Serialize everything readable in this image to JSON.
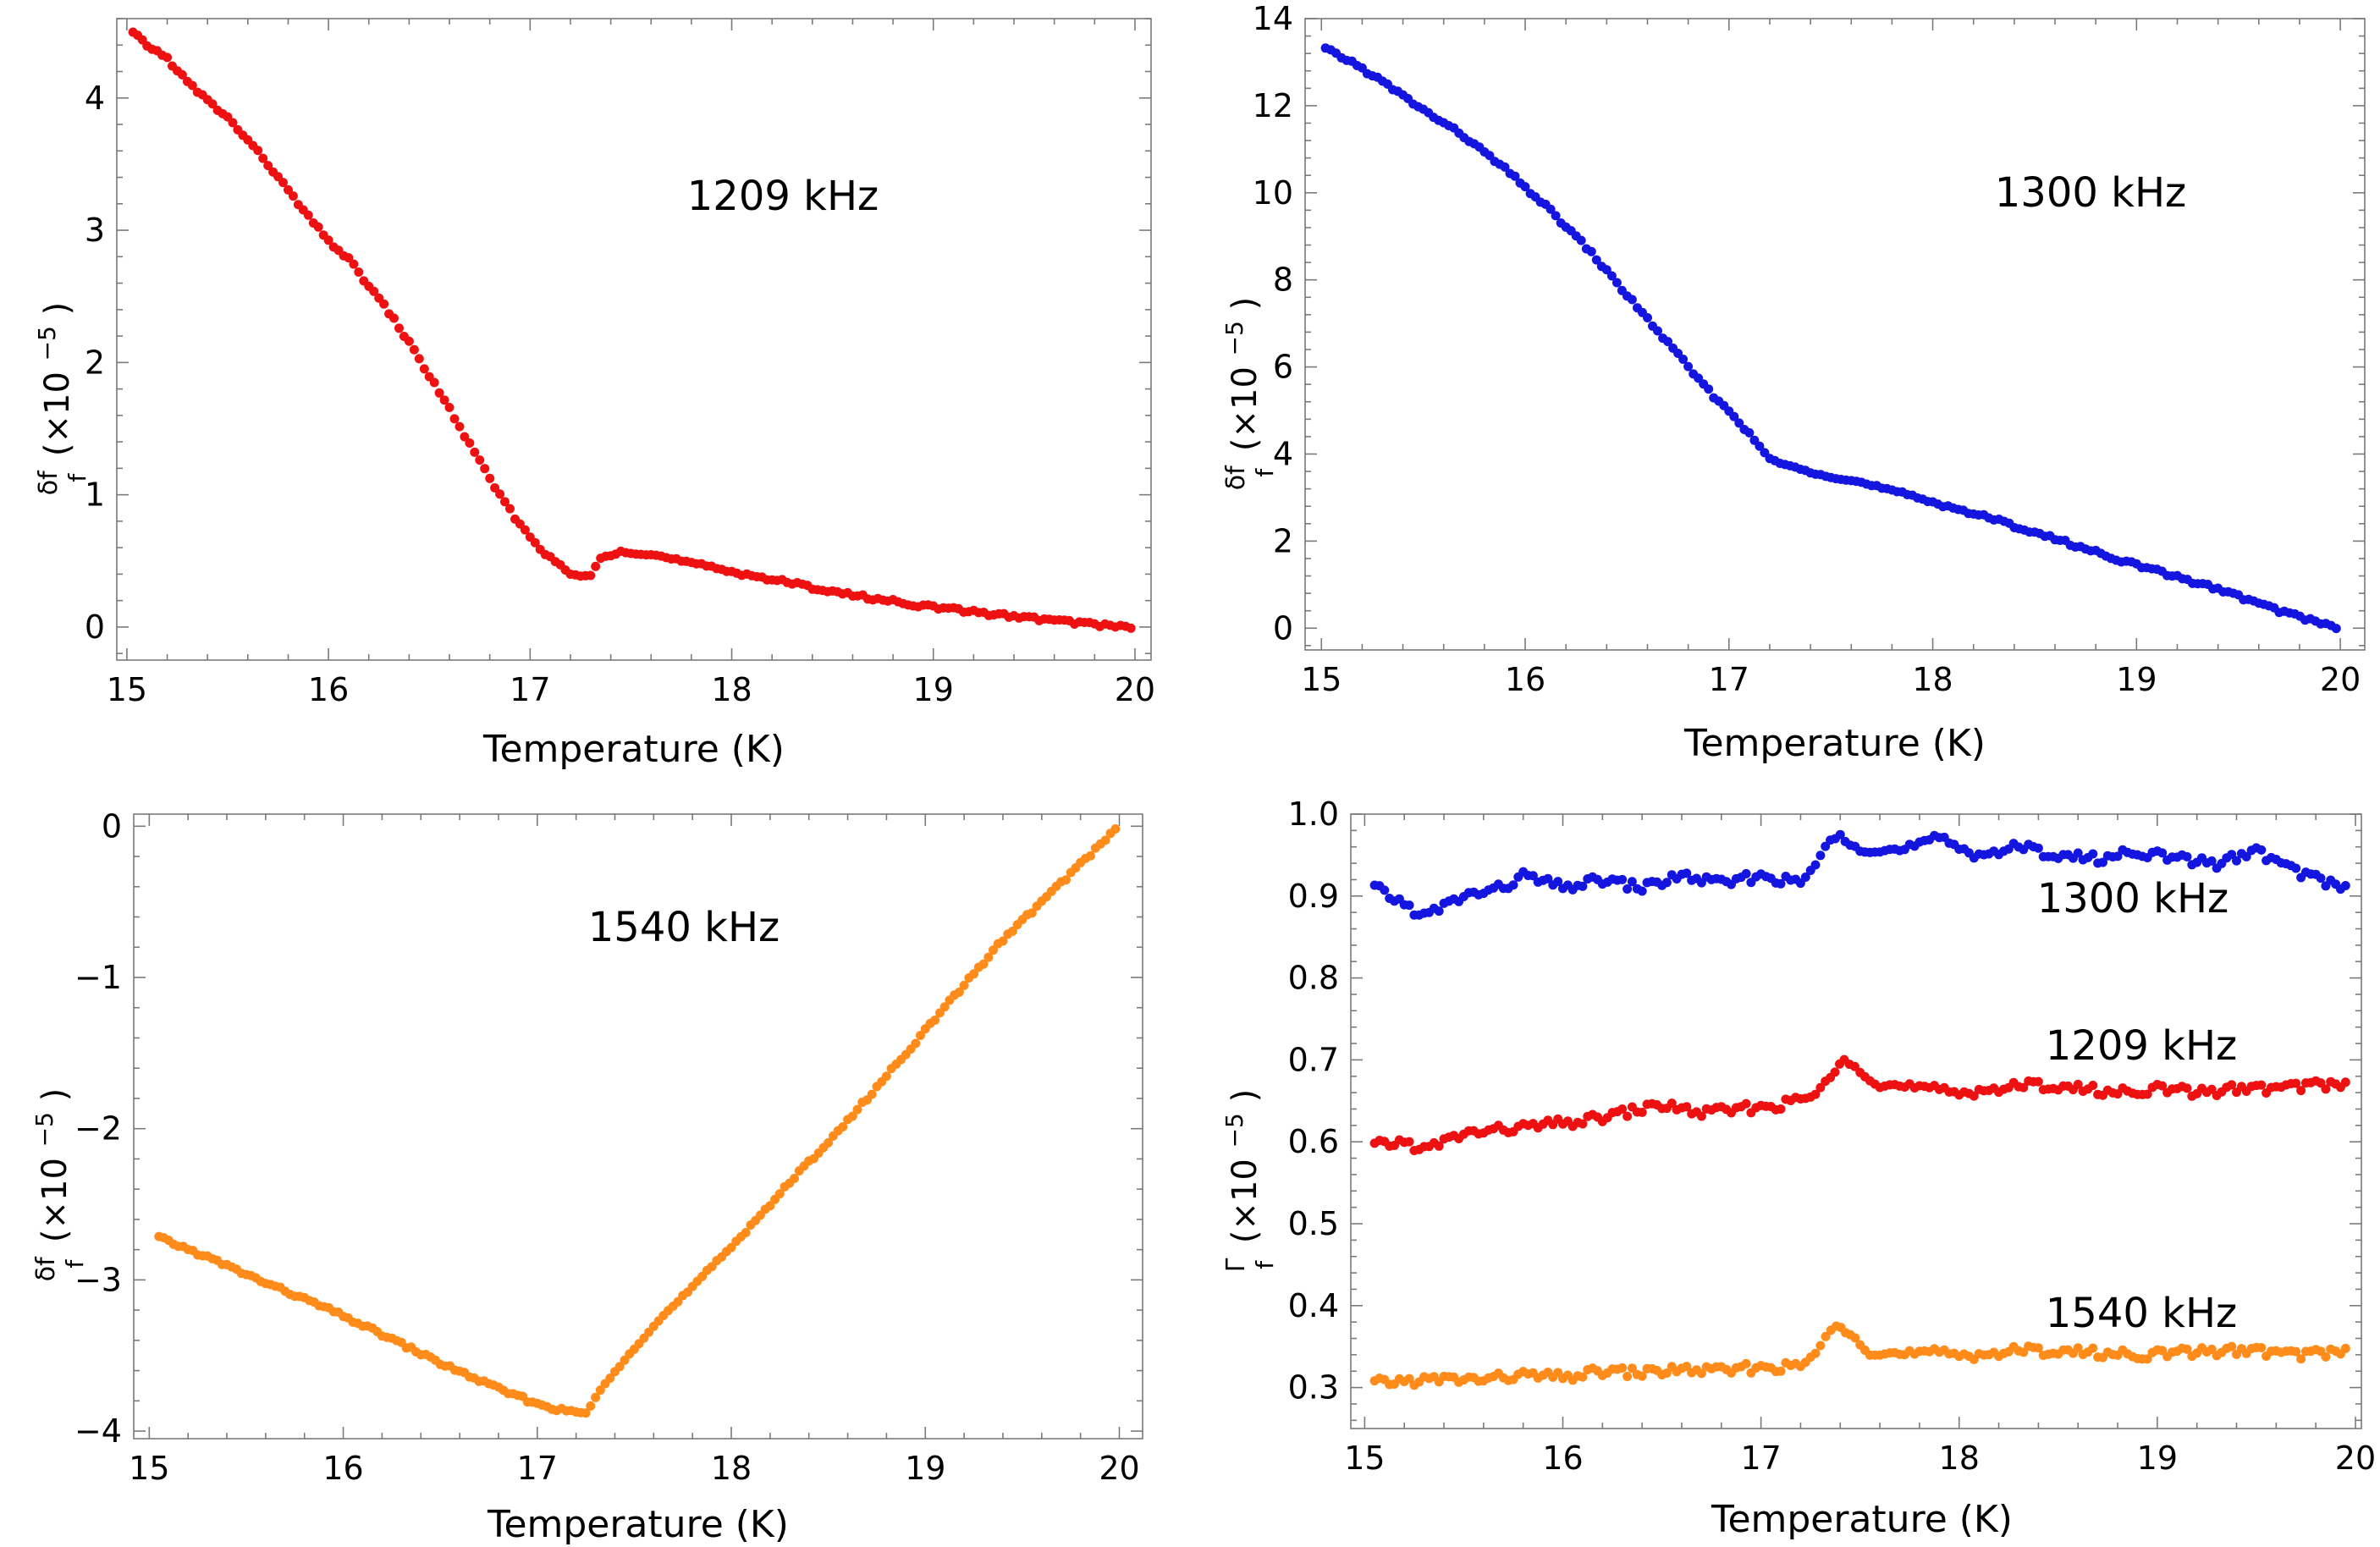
{
  "chart_data": [
    {
      "type": "scatter",
      "id": "p1",
      "xlabel": "Temperature (K)",
      "ylabel": {
        "frac_top": "δf",
        "frac_bottom": "f",
        "suffix": "(×10",
        "exp": "−5",
        "close": ")"
      },
      "xlim": [
        14.95,
        20.08
      ],
      "ylim": [
        -0.25,
        4.6
      ],
      "xticks": [
        15,
        16,
        17,
        18,
        19,
        20
      ],
      "yticks": [
        0,
        1,
        2,
        3,
        4
      ],
      "annotation": "1209 kHz",
      "series": [
        {
          "name": "1209 kHz",
          "color": "#ee1111",
          "x": [
            15.03,
            15.1,
            15.2,
            15.3,
            15.4,
            15.5,
            15.6,
            15.7,
            15.8,
            15.9,
            16.0,
            16.1,
            16.2,
            16.3,
            16.4,
            16.5,
            16.6,
            16.7,
            16.8,
            16.9,
            17.0,
            17.1,
            17.2,
            17.3,
            17.35,
            17.45,
            17.6,
            17.8,
            18.0,
            18.3,
            18.6,
            19.0,
            19.4,
            19.8,
            19.98
          ],
          "y": [
            4.49,
            4.4,
            4.3,
            4.12,
            3.98,
            3.85,
            3.68,
            3.5,
            3.3,
            3.1,
            2.92,
            2.78,
            2.58,
            2.38,
            2.15,
            1.9,
            1.65,
            1.38,
            1.12,
            0.88,
            0.68,
            0.52,
            0.4,
            0.38,
            0.52,
            0.58,
            0.55,
            0.48,
            0.42,
            0.33,
            0.24,
            0.15,
            0.08,
            0.02,
            0.0
          ]
        }
      ]
    },
    {
      "type": "scatter",
      "id": "p2",
      "xlabel": "Temperature (K)",
      "ylabel": {
        "frac_top": "δf",
        "frac_bottom": "f",
        "suffix": "(×10",
        "exp": "−5",
        "close": ")"
      },
      "xlim": [
        14.92,
        20.12
      ],
      "ylim": [
        -0.5,
        14.0
      ],
      "xticks": [
        15,
        16,
        17,
        18,
        19,
        20
      ],
      "yticks": [
        0,
        2,
        4,
        6,
        8,
        10,
        12,
        14
      ],
      "annotation": "1300 kHz",
      "series": [
        {
          "name": "1300 kHz",
          "color": "#1515e0",
          "x": [
            15.02,
            15.15,
            15.3,
            15.5,
            15.7,
            15.9,
            16.1,
            16.3,
            16.5,
            16.7,
            16.9,
            17.05,
            17.15,
            17.2,
            17.25,
            17.3,
            17.4,
            17.6,
            17.8,
            18.0,
            18.3,
            18.6,
            19.0,
            19.4,
            19.7,
            19.98
          ],
          "y": [
            13.3,
            13.0,
            12.55,
            11.9,
            11.3,
            10.55,
            9.7,
            8.75,
            7.65,
            6.55,
            5.45,
            4.75,
            4.15,
            3.9,
            3.8,
            3.7,
            3.6,
            3.4,
            3.15,
            2.9,
            2.5,
            2.05,
            1.45,
            0.9,
            0.4,
            0.02
          ]
        }
      ]
    },
    {
      "type": "scatter",
      "id": "p3",
      "xlabel": "Temperature (K)",
      "ylabel": {
        "frac_top": "δf",
        "frac_bottom": "f",
        "suffix": "(×10",
        "exp": "−5",
        "close": ")"
      },
      "xlim": [
        14.92,
        20.12
      ],
      "ylim": [
        -4.05,
        0.08
      ],
      "xticks": [
        15,
        16,
        17,
        18,
        19,
        20
      ],
      "yticks": [
        0,
        -1,
        -2,
        -3,
        -4
      ],
      "annotation": "1540 kHz",
      "series": [
        {
          "name": "1540 kHz",
          "color": "#ff8c1a",
          "x": [
            15.05,
            15.3,
            15.6,
            15.9,
            16.2,
            16.5,
            16.8,
            17.0,
            17.15,
            17.25,
            17.3,
            17.45,
            17.6,
            17.8,
            18.0,
            18.2,
            18.4,
            18.6,
            18.8,
            19.0,
            19.2,
            19.4,
            19.6,
            19.8,
            19.98
          ],
          "y": [
            -2.72,
            -2.85,
            -3.02,
            -3.18,
            -3.36,
            -3.55,
            -3.72,
            -3.82,
            -3.87,
            -3.88,
            -3.78,
            -3.52,
            -3.3,
            -3.05,
            -2.78,
            -2.5,
            -2.22,
            -1.95,
            -1.65,
            -1.35,
            -1.05,
            -0.75,
            -0.5,
            -0.25,
            -0.02
          ]
        }
      ]
    },
    {
      "type": "scatter",
      "id": "p4",
      "xlabel": "Temperature (K)",
      "ylabel": {
        "frac_top": "Γ",
        "frac_bottom": "f",
        "suffix": "(×10",
        "exp": "−5",
        "close": ")"
      },
      "xlim": [
        14.93,
        20.03
      ],
      "ylim": [
        0.25,
        1.0
      ],
      "xticks": [
        15,
        16,
        17,
        18,
        19,
        20
      ],
      "yticks": [
        0.3,
        0.4,
        0.5,
        0.6,
        0.7,
        0.8,
        0.9,
        1.0
      ],
      "annotations": [
        "1300 kHz",
        "1209 kHz",
        "1540 kHz"
      ],
      "series": [
        {
          "name": "1300 kHz",
          "color": "#1515e0",
          "x": [
            15.05,
            15.2,
            15.3,
            15.5,
            15.7,
            15.8,
            16.0,
            16.2,
            16.4,
            16.6,
            16.8,
            17.0,
            17.2,
            17.35,
            17.4,
            17.5,
            17.7,
            17.9,
            18.1,
            18.3,
            18.5,
            18.7,
            18.9,
            19.1,
            19.3,
            19.5,
            19.7,
            19.95
          ],
          "y": [
            0.91,
            0.89,
            0.875,
            0.9,
            0.91,
            0.925,
            0.91,
            0.92,
            0.91,
            0.925,
            0.915,
            0.925,
            0.915,
            0.965,
            0.975,
            0.96,
            0.955,
            0.97,
            0.95,
            0.96,
            0.95,
            0.945,
            0.955,
            0.945,
            0.94,
            0.955,
            0.93,
            0.91
          ]
        },
        {
          "name": "1209 kHz",
          "color": "#ee1111",
          "x": [
            15.05,
            15.2,
            15.3,
            15.5,
            15.7,
            15.9,
            16.1,
            16.3,
            16.5,
            16.7,
            16.9,
            17.1,
            17.25,
            17.35,
            17.42,
            17.5,
            17.6,
            17.8,
            18.0,
            18.2,
            18.4,
            18.6,
            18.8,
            19.0,
            19.2,
            19.4,
            19.6,
            19.8,
            19.95
          ],
          "y": [
            0.595,
            0.6,
            0.59,
            0.61,
            0.615,
            0.62,
            0.625,
            0.635,
            0.645,
            0.635,
            0.64,
            0.645,
            0.655,
            0.675,
            0.705,
            0.69,
            0.67,
            0.665,
            0.66,
            0.665,
            0.67,
            0.665,
            0.66,
            0.665,
            0.66,
            0.665,
            0.665,
            0.67,
            0.67
          ]
        },
        {
          "name": "1540 kHz",
          "color": "#ff8c1a",
          "x": [
            15.05,
            15.2,
            15.4,
            15.6,
            15.8,
            16.0,
            16.2,
            16.4,
            16.6,
            16.8,
            17.0,
            17.2,
            17.3,
            17.38,
            17.45,
            17.55,
            17.7,
            17.9,
            18.1,
            18.3,
            18.5,
            18.7,
            18.9,
            19.1,
            19.3,
            19.5,
            19.7,
            19.95
          ],
          "y": [
            0.305,
            0.308,
            0.31,
            0.31,
            0.315,
            0.312,
            0.32,
            0.318,
            0.322,
            0.32,
            0.325,
            0.325,
            0.35,
            0.375,
            0.37,
            0.345,
            0.34,
            0.342,
            0.34,
            0.345,
            0.345,
            0.342,
            0.34,
            0.342,
            0.345,
            0.345,
            0.34,
            0.345
          ]
        }
      ]
    }
  ]
}
